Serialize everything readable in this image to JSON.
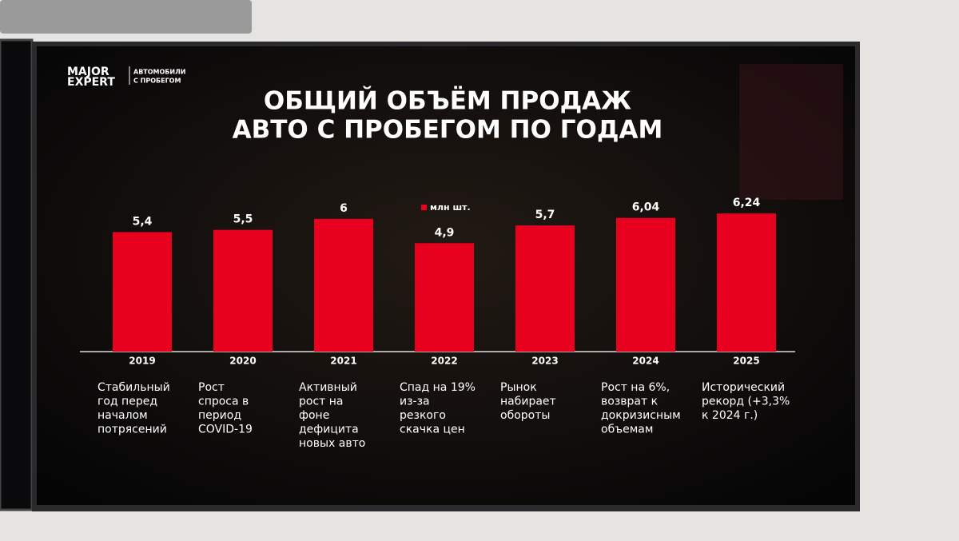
{
  "logo": {
    "brand": [
      "MAJOR",
      "EXPERT"
    ],
    "tagline": [
      "АВТОМОБИЛИ",
      "С ПРОБЕГОМ"
    ]
  },
  "chart_data": {
    "type": "bar",
    "title": [
      "ОБЩИЙ ОБЪЁМ ПРОДАЖ",
      "АВТО С ПРОБЕГОМ ПО ГОДАМ"
    ],
    "categories": [
      "2019",
      "2020",
      "2021",
      "2022",
      "2023",
      "2024",
      "2025"
    ],
    "series": [
      {
        "name": "млн шт.",
        "color": "#e8001f",
        "values": [
          5.4,
          5.5,
          6,
          4.9,
          5.7,
          6.04,
          6.24
        ],
        "value_labels": [
          "5,4",
          "5,5",
          "6",
          "4,9",
          "5,7",
          "6,04",
          "6,24"
        ]
      }
    ],
    "annotations": [
      [
        "Стабильный",
        "год перед",
        "началом",
        "потрясений"
      ],
      [
        "Рост",
        "спроса в",
        "период",
        "COVID-19"
      ],
      [
        "Активный",
        "рост на",
        "фоне",
        "дефицита",
        "новых авто"
      ],
      [
        "Спад на 19%",
        "из-за",
        "резкого",
        "скачка цен"
      ],
      [
        "Рынок",
        "набирает",
        "обороты"
      ],
      [
        "Рост на 6%,",
        "возврат к",
        "докризисным",
        "объемам"
      ],
      [
        "Исторический",
        "рекорд (+3,3%",
        "к 2024 г.)"
      ]
    ]
  }
}
